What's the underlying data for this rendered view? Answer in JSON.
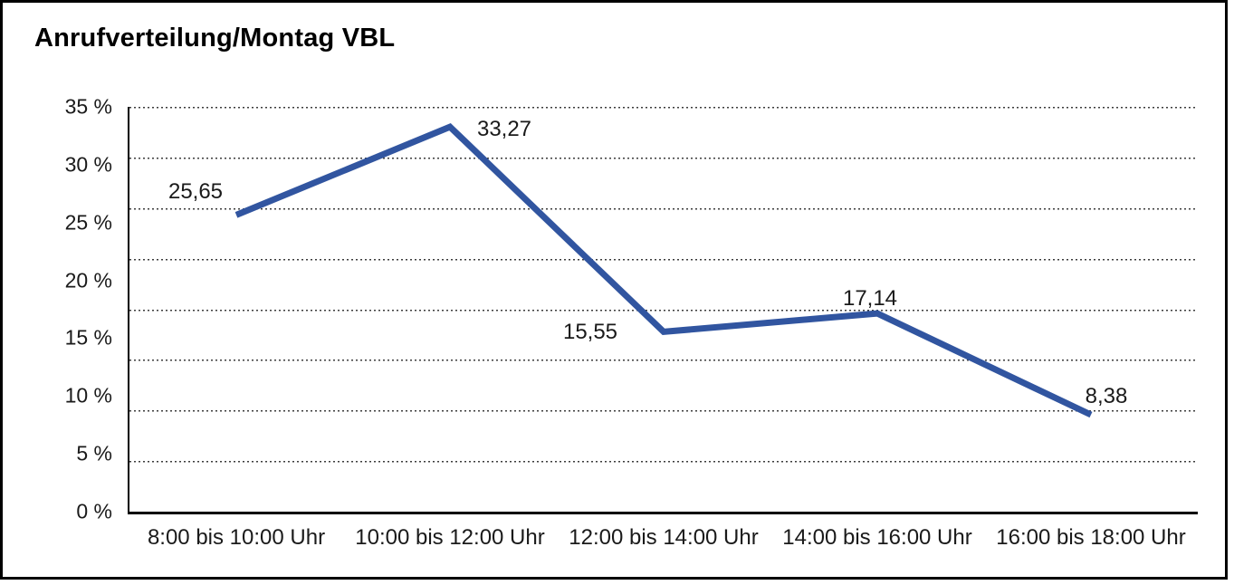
{
  "title": "Anrufverteilung/Montag VBL",
  "colors": {
    "line": "#3155A0",
    "axis": "#000000",
    "gridline": "#3c3c3c",
    "text": "#1a1a1a",
    "background": "#ffffff",
    "page_border": "#000000"
  },
  "chart_data": {
    "type": "line",
    "title": "Anrufverteilung/Montag VBL",
    "categories": [
      "8:00 bis 10:00 Uhr",
      "10:00 bis 12:00 Uhr",
      "12:00 bis 14:00 Uhr",
      "14:00 bis 16:00 Uhr",
      "16:00 bis 18:00 Uhr"
    ],
    "values": [
      25.65,
      33.27,
      15.55,
      17.14,
      8.38
    ],
    "point_labels": [
      "25,65",
      "33,27",
      "15,55",
      "17,14",
      "8,38"
    ],
    "xlabel": "",
    "ylabel": "",
    "ylim": [
      0,
      35
    ],
    "y_tick_labels": [
      "35 %",
      "30 %",
      "25 %",
      "20 %",
      "15 %",
      "10 %",
      "5 %",
      "0 %"
    ],
    "y_tick_values": [
      35,
      30,
      25,
      20,
      15,
      10,
      5,
      0
    ],
    "grid_divisions": 8,
    "grid_style": "horizontal dotted",
    "legend": "none",
    "line_color": "#3155A0"
  }
}
